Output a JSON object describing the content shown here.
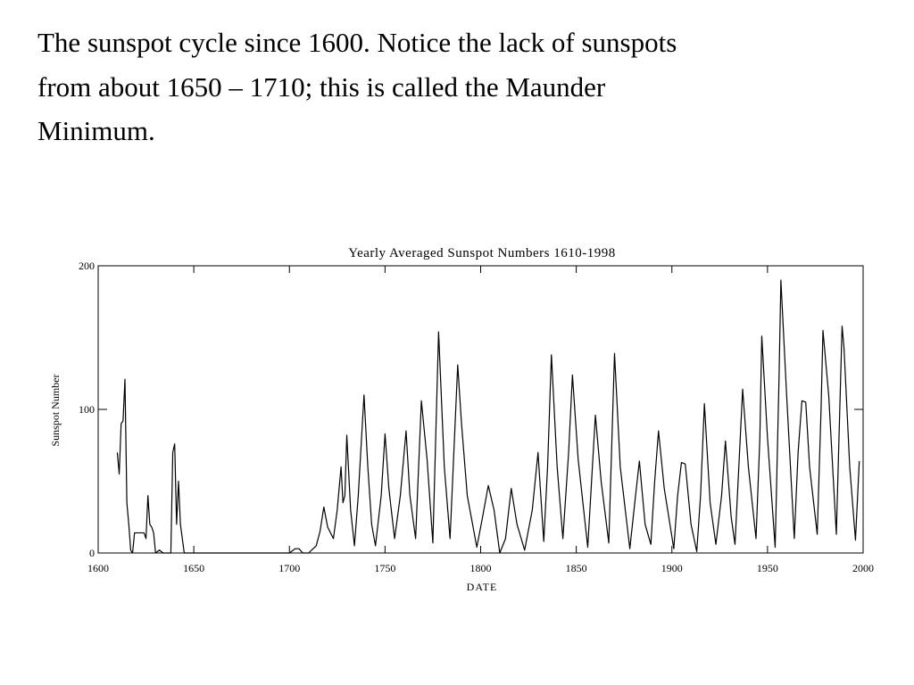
{
  "caption": [
    "The sunspot cycle since 1600.  Notice the lack of sunspots",
    "from about 1650 – 1710; this is called the Maunder",
    "Minimum."
  ],
  "chart_data": {
    "type": "line",
    "title": "Yearly Averaged Sunspot Numbers 1610-1998",
    "x_label": "DATE",
    "y_label": "Sunspot Number",
    "color": "#000000",
    "x": [
      1610,
      1611,
      1612,
      1613,
      1614,
      1615,
      1616,
      1617,
      1618,
      1619,
      1624,
      1625,
      1626,
      1627,
      1628,
      1629,
      1630,
      1632,
      1634,
      1638,
      1639,
      1640,
      1641,
      1642,
      1643,
      1645,
      1650,
      1660,
      1670,
      1680,
      1690,
      1700,
      1703,
      1705,
      1707,
      1710,
      1714,
      1716,
      1718,
      1720,
      1723,
      1725,
      1727,
      1728,
      1729,
      1730,
      1732,
      1734,
      1736,
      1739,
      1741,
      1743,
      1745,
      1748,
      1750,
      1752,
      1755,
      1758,
      1761,
      1763,
      1766,
      1769,
      1772,
      1775,
      1778,
      1781,
      1784,
      1788,
      1790,
      1793,
      1798,
      1801,
      1804,
      1807,
      1810,
      1813,
      1816,
      1819,
      1823,
      1827,
      1830,
      1833,
      1835,
      1837,
      1840,
      1843,
      1846,
      1848,
      1851,
      1856,
      1858,
      1860,
      1863,
      1867,
      1870,
      1873,
      1878,
      1881,
      1883,
      1886,
      1889,
      1891,
      1893,
      1896,
      1901,
      1903,
      1905,
      1907,
      1910,
      1913,
      1915,
      1917,
      1920,
      1923,
      1926,
      1928,
      1931,
      1933,
      1935,
      1937,
      1940,
      1944,
      1946,
      1947,
      1950,
      1954,
      1956,
      1957,
      1960,
      1964,
      1966,
      1968,
      1970,
      1972,
      1976,
      1978,
      1979,
      1982,
      1986,
      1988,
      1989,
      1990,
      1993,
      1996,
      1998
    ],
    "values": [
      70,
      55,
      90,
      92,
      121,
      35,
      20,
      2,
      0,
      14,
      14,
      10,
      40,
      20,
      18,
      14,
      0,
      2,
      0,
      0,
      70,
      76,
      20,
      50,
      20,
      0,
      0,
      0,
      0,
      0,
      0,
      0,
      3,
      3,
      0,
      0,
      5,
      15,
      32,
      18,
      10,
      30,
      60,
      35,
      40,
      82,
      30,
      5,
      40,
      110,
      60,
      20,
      5,
      40,
      83,
      45,
      10,
      40,
      85,
      40,
      10,
      106,
      65,
      7,
      154,
      60,
      10,
      131,
      90,
      40,
      4,
      25,
      47,
      30,
      0,
      10,
      45,
      20,
      2,
      30,
      70,
      8,
      60,
      138,
      60,
      10,
      70,
      124,
      65,
      4,
      50,
      96,
      50,
      7,
      139,
      60,
      3,
      40,
      64,
      20,
      6,
      50,
      85,
      45,
      3,
      40,
      63,
      62,
      20,
      1,
      40,
      104,
      35,
      6,
      40,
      78,
      25,
      6,
      60,
      114,
      60,
      10,
      80,
      151,
      80,
      4,
      120,
      190,
      110,
      10,
      70,
      106,
      105,
      60,
      13,
      100,
      155,
      110,
      13,
      110,
      158,
      143,
      60,
      9,
      64
    ],
    "xlim": [
      1600,
      2000
    ],
    "ylim": [
      0,
      200
    ],
    "xticks": [
      1600,
      1650,
      1700,
      1750,
      1800,
      1850,
      1900,
      1950,
      2000
    ],
    "yticks": [
      0,
      100,
      200
    ]
  }
}
